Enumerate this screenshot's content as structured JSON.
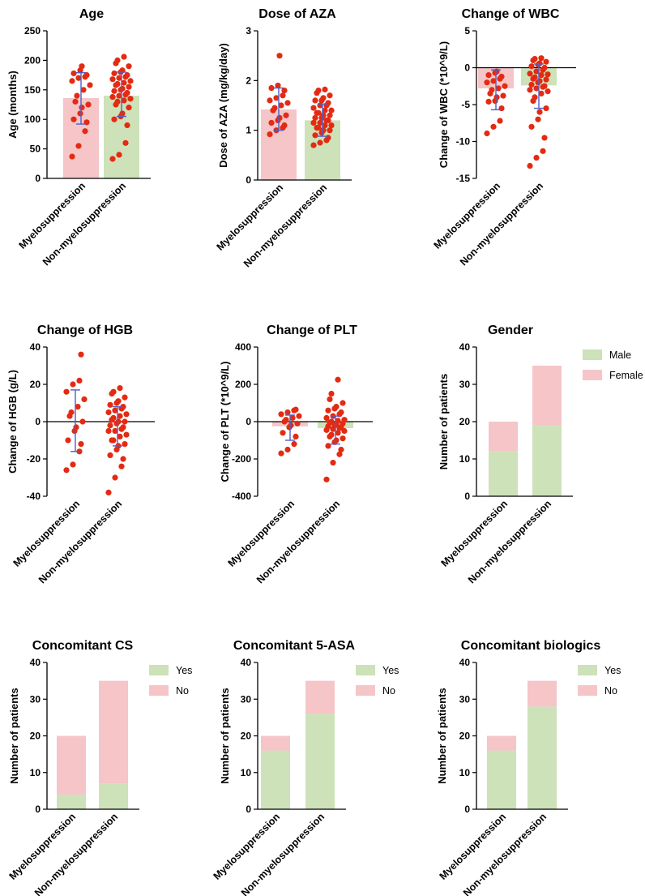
{
  "colors": {
    "pink": "#f5c5c8",
    "green": "#cde2b8",
    "dot": "#e42a12",
    "err": "#4d5fc9",
    "axis": "#000000"
  },
  "chart_data": [
    {
      "type": "scatter",
      "title": "Age",
      "ylabel": "Age (months)",
      "ylim": [
        0,
        250
      ],
      "yticks": [
        0,
        50,
        100,
        150,
        200,
        250
      ],
      "categories": [
        "Myelosuppression",
        "Non-myelosuppression"
      ],
      "bars": [
        136,
        140
      ],
      "errors": [
        [
          92,
          179
        ],
        [
          105,
          180
        ]
      ],
      "points": [
        [
          37,
          55,
          80,
          95,
          100,
          110,
          120,
          125,
          130,
          140,
          150,
          158,
          165,
          170,
          172,
          175,
          178,
          183,
          190
        ],
        [
          33,
          40,
          60,
          90,
          100,
          105,
          110,
          120,
          125,
          130,
          132,
          135,
          138,
          140,
          142,
          145,
          148,
          150,
          152,
          155,
          158,
          160,
          162,
          165,
          168,
          170,
          172,
          175,
          178,
          180,
          183,
          190,
          195,
          200,
          206
        ]
      ]
    },
    {
      "type": "scatter",
      "title": "Dose of AZA",
      "ylabel": "Dose of AZA (mg/kg/day)",
      "ylim": [
        0,
        3
      ],
      "yticks": [
        0,
        1,
        2,
        3
      ],
      "categories": [
        "Myelosuppression",
        "Non-myelosuppression"
      ],
      "bars": [
        1.42,
        1.2
      ],
      "errors": [
        [
          1.0,
          1.85
        ],
        [
          0.88,
          1.53
        ]
      ],
      "points": [
        [
          0.92,
          1.0,
          1.05,
          1.1,
          1.15,
          1.2,
          1.25,
          1.3,
          1.4,
          1.45,
          1.5,
          1.55,
          1.6,
          1.65,
          1.7,
          1.8,
          1.85,
          1.9,
          2.5
        ],
        [
          0.7,
          0.75,
          0.8,
          0.85,
          0.9,
          0.95,
          1.0,
          1.0,
          1.05,
          1.05,
          1.1,
          1.1,
          1.15,
          1.15,
          1.2,
          1.2,
          1.25,
          1.25,
          1.3,
          1.3,
          1.35,
          1.35,
          1.4,
          1.4,
          1.45,
          1.5,
          1.5,
          1.55,
          1.6,
          1.6,
          1.65,
          1.7,
          1.75,
          1.8,
          1.82
        ]
      ]
    },
    {
      "type": "scatter",
      "title": "Change of WBC",
      "ylabel": "Change of WBC (*10^9/L)",
      "ylim": [
        -15,
        5
      ],
      "yticks": [
        -15,
        -10,
        -5,
        0,
        5
      ],
      "zero_line": true,
      "categories": [
        "Myelosuppression",
        "Non-myelosuppression"
      ],
      "bars": [
        -2.8,
        -2.4
      ],
      "errors": [
        [
          -5.7,
          -0.3
        ],
        [
          -5.5,
          0.5
        ]
      ],
      "points": [
        [
          -8.9,
          -8.0,
          -7.2,
          -5.5,
          -4.6,
          -4.5,
          -4.0,
          -3.8,
          -3.5,
          -3.0,
          -2.8,
          -2.5,
          -2.0,
          -1.8,
          -1.5,
          -1.2,
          -1.0,
          -0.7,
          -0.5
        ],
        [
          -13.3,
          -12.2,
          -11.3,
          -9.5,
          -8.0,
          -7.0,
          -6.0,
          -5.5,
          -4.5,
          -4.0,
          -3.5,
          -3.2,
          -3.0,
          -2.8,
          -2.5,
          -2.3,
          -2.0,
          -1.8,
          -1.5,
          -1.3,
          -1.0,
          -0.8,
          -0.5,
          -0.3,
          0.0,
          0.2,
          0.4,
          0.6,
          0.8,
          1.0,
          1.2,
          -1.6,
          -2.6,
          -0.9,
          1.3
        ]
      ]
    },
    {
      "type": "scatter",
      "title": "Change of HGB",
      "ylabel": "Change of HGB (g/L)",
      "ylim": [
        -40,
        40
      ],
      "yticks": [
        -40,
        -20,
        0,
        20,
        40
      ],
      "zero_line": true,
      "categories": [
        "Myelosuppression",
        "Non-myelosuppression"
      ],
      "bars": [
        0,
        0
      ],
      "errors": [
        [
          -16,
          17
        ],
        [
          -13,
          8
        ]
      ],
      "points": [
        [
          -26,
          -23,
          -16,
          -12,
          -10,
          -5,
          -3,
          0,
          3,
          5,
          8,
          12,
          16,
          20,
          22,
          36
        ],
        [
          -38,
          -30,
          -24,
          -20,
          -18,
          -15,
          -13,
          -12,
          -10,
          -10,
          -8,
          -7,
          -5,
          -5,
          -4,
          -3,
          -2,
          -1,
          0,
          0,
          1,
          2,
          3,
          4,
          5,
          6,
          7,
          8,
          9,
          10,
          11,
          13,
          15,
          16,
          18
        ]
      ]
    },
    {
      "type": "scatter",
      "title": "Change of PLT",
      "ylabel": "Change of PLT (*10^9/L)",
      "ylim": [
        -400,
        400
      ],
      "yticks": [
        -400,
        -200,
        0,
        200,
        400
      ],
      "zero_line": true,
      "categories": [
        "Myelosuppression",
        "Non-myelosuppression"
      ],
      "bars": [
        -25,
        -35
      ],
      "errors": [
        [
          -100,
          35
        ],
        [
          -120,
          30
        ]
      ],
      "points": [
        [
          -170,
          -150,
          -120,
          -80,
          -60,
          -30,
          -20,
          -10,
          0,
          10,
          20,
          30,
          40,
          50,
          60,
          65
        ],
        [
          -310,
          -220,
          -175,
          -150,
          -130,
          -110,
          -100,
          -90,
          -80,
          -70,
          -60,
          -50,
          -45,
          -40,
          -35,
          -30,
          -25,
          -20,
          -15,
          -10,
          -5,
          0,
          5,
          10,
          20,
          30,
          40,
          50,
          60,
          70,
          80,
          100,
          120,
          150,
          225
        ]
      ]
    },
    {
      "type": "bar",
      "title": "Gender",
      "ylabel": "Number of patients",
      "ylim": [
        0,
        40
      ],
      "yticks": [
        0,
        10,
        20,
        30,
        40
      ],
      "categories": [
        "Myelosuppression",
        "Non-myelosuppression"
      ],
      "series": [
        {
          "name": "Male",
          "values": [
            12,
            19
          ]
        },
        {
          "name": "Female",
          "values": [
            8,
            16
          ]
        }
      ]
    },
    {
      "type": "bar",
      "title": "Concomitant CS",
      "ylabel": "Number of patients",
      "ylim": [
        0,
        40
      ],
      "yticks": [
        0,
        10,
        20,
        30,
        40
      ],
      "categories": [
        "Myelosuppression",
        "Non-myelosuppression"
      ],
      "series": [
        {
          "name": "Yes",
          "values": [
            4,
            7
          ]
        },
        {
          "name": "No",
          "values": [
            16,
            28
          ]
        }
      ]
    },
    {
      "type": "bar",
      "title": "Concomitant 5-ASA",
      "ylabel": "Number of patients",
      "ylim": [
        0,
        40
      ],
      "yticks": [
        0,
        10,
        20,
        30,
        40
      ],
      "categories": [
        "Myelosuppression",
        "Non-myelosuppression"
      ],
      "series": [
        {
          "name": "Yes",
          "values": [
            16,
            26
          ]
        },
        {
          "name": "No",
          "values": [
            4,
            9
          ]
        }
      ]
    },
    {
      "type": "bar",
      "title": "Concomitant biologics",
      "ylabel": "Number of patients",
      "ylim": [
        0,
        40
      ],
      "yticks": [
        0,
        10,
        20,
        30,
        40
      ],
      "categories": [
        "Myelosuppression",
        "Non-myelosuppression"
      ],
      "series": [
        {
          "name": "Yes",
          "values": [
            16,
            28
          ]
        },
        {
          "name": "No",
          "values": [
            4,
            7
          ]
        }
      ]
    }
  ]
}
